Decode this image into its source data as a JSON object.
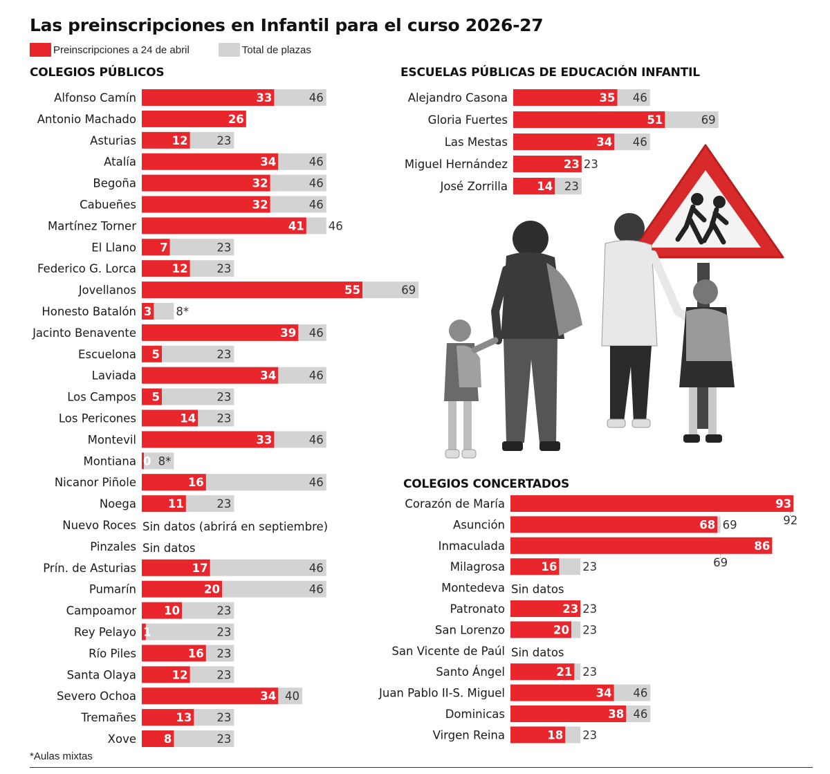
{
  "title": "Las preinscripciones en Infantil para el curso 2026-27",
  "legend": {
    "preregistrations": "Preinscripciones a 24 de abril",
    "total": "Total de plazas"
  },
  "colors": {
    "preregistrations": "#e8262c",
    "total": "#d3d3d3"
  },
  "footnote": "*Aulas mixtas",
  "illustration_icons": [
    "school-crossing-sign-icon",
    "family-walking-photo"
  ],
  "chart_data": [
    {
      "type": "bar",
      "orientation": "horizontal",
      "overlap": true,
      "title": "COLEGIOS PÚBLICOS",
      "legend_placement": "top-left",
      "grid": false,
      "categories": [
        "Alfonso Camín",
        "Antonio Machado",
        "Asturias",
        "Atalía",
        "Begoña",
        "Cabueñes",
        "Martínez Torner",
        "El Llano",
        "Federico G. Lorca",
        "Jovellanos",
        "Honesto Batalón",
        "Jacinto Benavente",
        "Escuelona",
        "Laviada",
        "Los Campos",
        "Los Pericones",
        "Montevil",
        "Montiana",
        "Nicanor Piñole",
        "Noega",
        "Nuevo Roces",
        "Pinzales",
        "Prín. de Asturias",
        "Pumarín",
        "Campoamor",
        "Rey Pelayo",
        "Río Piles",
        "Santa Olaya",
        "Severo Ochoa",
        "Tremañes",
        "Xove"
      ],
      "series": [
        {
          "name": "Preinscripciones a 24 de abril",
          "values": [
            33,
            26,
            12,
            34,
            32,
            32,
            41,
            7,
            12,
            55,
            3,
            39,
            5,
            34,
            5,
            14,
            33,
            0,
            16,
            11,
            null,
            null,
            17,
            20,
            10,
            1,
            16,
            12,
            34,
            13,
            8
          ]
        },
        {
          "name": "Total de plazas",
          "values": [
            46,
            null,
            23,
            46,
            46,
            46,
            46,
            23,
            23,
            69,
            8,
            46,
            23,
            46,
            23,
            23,
            46,
            8,
            46,
            23,
            null,
            null,
            46,
            46,
            23,
            23,
            23,
            23,
            40,
            23,
            23
          ]
        }
      ],
      "total_labels": [
        "46",
        "",
        "23",
        "46",
        "46",
        "46",
        "46",
        "23",
        "23",
        "69",
        "8*",
        "46",
        "23",
        "46",
        "23",
        "23",
        "46",
        "8*",
        "46",
        "23",
        "",
        "",
        "46",
        "46",
        "23",
        "23",
        "23",
        "23",
        "40",
        "23",
        "23"
      ],
      "value_labels": [
        "33",
        "26",
        "12",
        "34",
        "32",
        "32",
        "41",
        "7",
        "12",
        "55",
        "3",
        "39",
        "5",
        "34",
        "5",
        "14",
        "33",
        "0",
        "16",
        "11",
        "",
        "",
        "17",
        "20",
        "10",
        "1",
        "16",
        "12",
        "34",
        "13",
        "8"
      ],
      "notes": [
        "",
        "",
        "",
        "",
        "",
        "",
        "",
        "",
        "",
        "",
        "",
        "",
        "",
        "",
        "",
        "",
        "",
        "",
        "",
        "",
        "Sin datos (abrirá en septiembre)",
        "Sin datos",
        "",
        "",
        "",
        "",
        "",
        "",
        "",
        "",
        ""
      ]
    },
    {
      "type": "bar",
      "orientation": "horizontal",
      "overlap": true,
      "title": "ESCUELAS PÚBLICAS DE EDUCACIÓN INFANTIL",
      "categories": [
        "Alejandro Casona",
        "Gloria Fuertes",
        "Las Mestas",
        "Miguel Hernández",
        "José Zorrilla"
      ],
      "series": [
        {
          "name": "Preinscripciones a 24 de abril",
          "values": [
            35,
            51,
            34,
            23,
            14
          ]
        },
        {
          "name": "Total de plazas",
          "values": [
            46,
            69,
            46,
            23,
            23
          ]
        }
      ],
      "total_labels": [
        "46",
        "69",
        "46",
        "23",
        "23"
      ],
      "value_labels": [
        "35",
        "51",
        "34",
        "23",
        "14"
      ],
      "notes": [
        "",
        "",
        "",
        "",
        ""
      ]
    },
    {
      "type": "bar",
      "orientation": "horizontal",
      "overlap": true,
      "title": "COLEGIOS CONCERTADOS",
      "categories": [
        "Corazón de María",
        "Asunción",
        "Inmaculada",
        "Milagrosa",
        "Montedeva",
        "Patronato",
        "San Lorenzo",
        "San Vicente de Paúl",
        "Santo Ángel",
        "Juan Pablo II-S. Miguel",
        "Dominicas",
        "Virgen Reina"
      ],
      "series": [
        {
          "name": "Preinscripciones a 24 de abril",
          "values": [
            93,
            68,
            86,
            16,
            null,
            23,
            20,
            null,
            21,
            34,
            38,
            18
          ]
        },
        {
          "name": "Total de plazas",
          "values": [
            92,
            69,
            69,
            23,
            null,
            23,
            23,
            null,
            23,
            46,
            46,
            23
          ]
        }
      ],
      "total_labels": [
        "92",
        "69",
        "69",
        "23",
        "",
        "23",
        "23",
        "",
        "23",
        "46",
        "46",
        "23"
      ],
      "value_labels": [
        "93",
        "68",
        "86",
        "16",
        "",
        "23",
        "20",
        "",
        "21",
        "34",
        "38",
        "18"
      ],
      "notes": [
        "",
        "",
        "",
        "",
        "Sin datos",
        "",
        "",
        "Sin datos",
        "",
        "",
        "",
        ""
      ]
    }
  ]
}
